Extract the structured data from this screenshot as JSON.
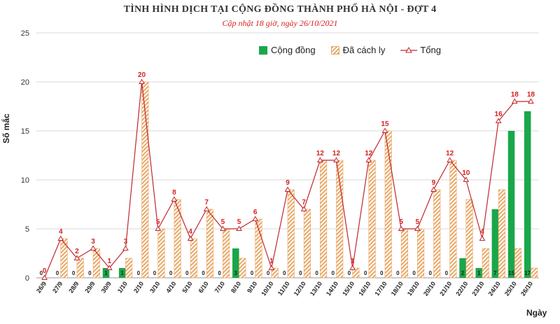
{
  "title": "TÌNH HÌNH DỊCH TẠI CỘNG ĐỒNG THÀNH PHỐ HÀ NỘI - ĐỢT 4",
  "subtitle": "Cập nhật 18 giờ, ngày 26/10/2021",
  "legend": {
    "community": "Cộng đồng",
    "isolated": "Đã cách ly",
    "total": "Tổng"
  },
  "colors": {
    "community": "#19a74a",
    "isolated": "#e9a866",
    "total": "#c0282d",
    "grid": "#d9d9d9"
  },
  "chart_data": {
    "type": "bar",
    "title": "TÌNH HÌNH DỊCH TẠI CỘNG ĐỒNG THÀNH PHỐ HÀ NỘI - ĐỢT 4",
    "subtitle": "Cập nhật 18 giờ, ngày 26/10/2021",
    "xlabel": "Ngày",
    "ylabel": "Số mắc",
    "ylim": [
      0,
      25
    ],
    "yticks": [
      0,
      5,
      10,
      15,
      20,
      25
    ],
    "grid": true,
    "legend_position": "top-right",
    "categories": [
      "26/9",
      "27/9",
      "28/9",
      "29/9",
      "30/9",
      "1/10",
      "2/10",
      "3/10",
      "4/10",
      "5/10",
      "6/10",
      "7/10",
      "8/10",
      "9/10",
      "10/10",
      "11/10",
      "12/10",
      "13/10",
      "14/10",
      "15/10",
      "16/10",
      "17/10",
      "18/10",
      "19/10",
      "20/10",
      "21/10",
      "22/10",
      "23/10",
      "24/10",
      "25/10",
      "26/10"
    ],
    "series": [
      {
        "name": "Cộng đồng",
        "type": "bar",
        "values": [
          0,
          0,
          0,
          0,
          1,
          1,
          0,
          0,
          0,
          0,
          0,
          0,
          3,
          0,
          0,
          0,
          0,
          0,
          0,
          0,
          0,
          0,
          0,
          0,
          0,
          0,
          2,
          1,
          7,
          15,
          17
        ]
      },
      {
        "name": "Đã cách ly",
        "type": "bar",
        "values": [
          0,
          4,
          2,
          3,
          0,
          2,
          20,
          5,
          8,
          4,
          7,
          5,
          2,
          6,
          1,
          9,
          7,
          12,
          12,
          1,
          12,
          15,
          5,
          5,
          9,
          12,
          8,
          3,
          9,
          3,
          1
        ]
      },
      {
        "name": "Tổng",
        "type": "line",
        "values": [
          0,
          4,
          2,
          3,
          1,
          3,
          20,
          5,
          8,
          4,
          7,
          5,
          5,
          6,
          1,
          9,
          7,
          12,
          12,
          1,
          12,
          15,
          5,
          5,
          9,
          12,
          10,
          4,
          16,
          18,
          18
        ]
      }
    ]
  }
}
